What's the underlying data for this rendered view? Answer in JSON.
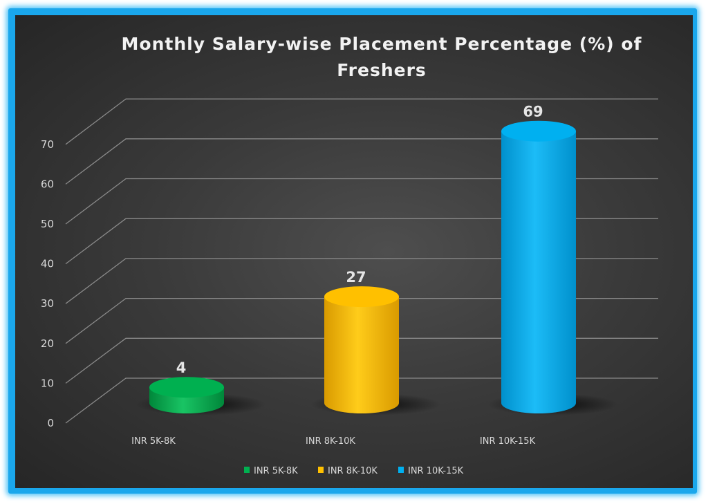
{
  "chart_data": {
    "type": "bar",
    "style": "3d-cylinder",
    "title": "Monthly Salary-wise Placement Percentage (%) of Freshers",
    "title_lines": [
      "Monthly Salary-wise Placement Percentage (%) of",
      "Freshers"
    ],
    "categories": [
      "INR 5K-8K",
      "INR 8K-10K",
      "INR 10K-15K"
    ],
    "values": [
      4,
      27,
      69
    ],
    "data_labels": [
      "4",
      "27",
      "69"
    ],
    "colors": [
      "#00b050",
      "#ffc000",
      "#00b0f0"
    ],
    "ylim": [
      0,
      70
    ],
    "yticks": [
      0,
      10,
      20,
      30,
      40,
      50,
      60,
      70
    ],
    "ytick_labels": [
      "0",
      "10",
      "20",
      "30",
      "40",
      "50",
      "60",
      "70"
    ],
    "grid": true,
    "legend": {
      "placement": "bottom",
      "entries": [
        "INR 5K-8K",
        "INR 8K-10K",
        "INR 10K-15K"
      ]
    },
    "background": "#3a3a3a",
    "frame_color": "#1aa7ec"
  }
}
